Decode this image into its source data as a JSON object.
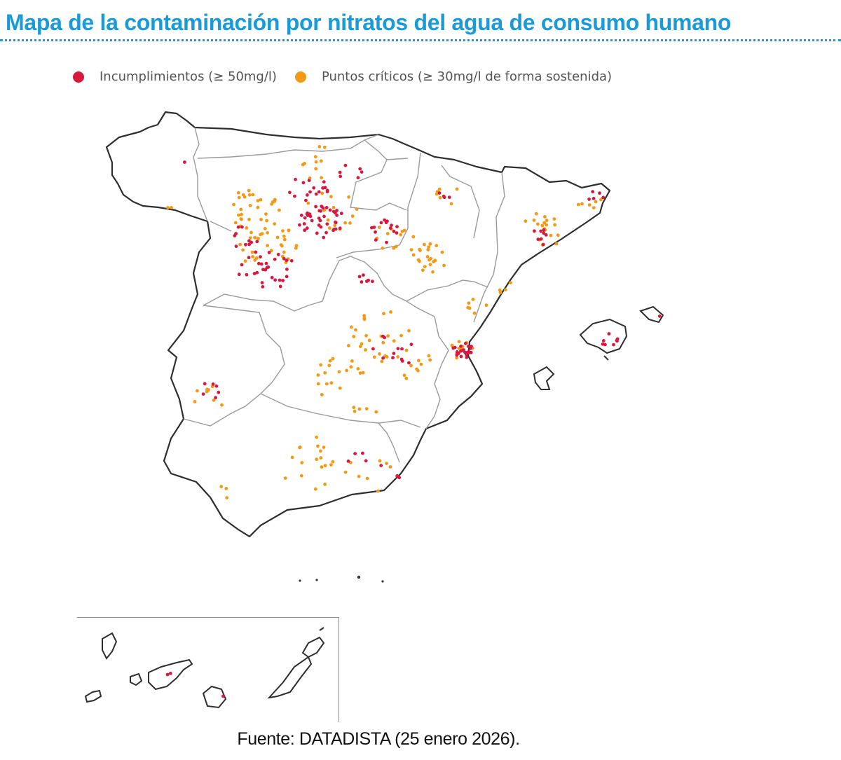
{
  "title": "Mapa de la contaminación por nitratos del agua de consumo humano",
  "legend": [
    {
      "label": "Incumplimientos (≥ 50mg/l)",
      "color": "#d7193f"
    },
    {
      "label": "Puntos críticos (≥ 30mg/l de forma sostenida)",
      "color": "#f39a14"
    }
  ],
  "source": "Fuente: DATADISTA (25 enero 2026).",
  "colors": {
    "accent": "#1a9ad6",
    "incumplimiento": "#d7193f",
    "critico": "#f39a14",
    "border": "#3a3a3a"
  }
}
